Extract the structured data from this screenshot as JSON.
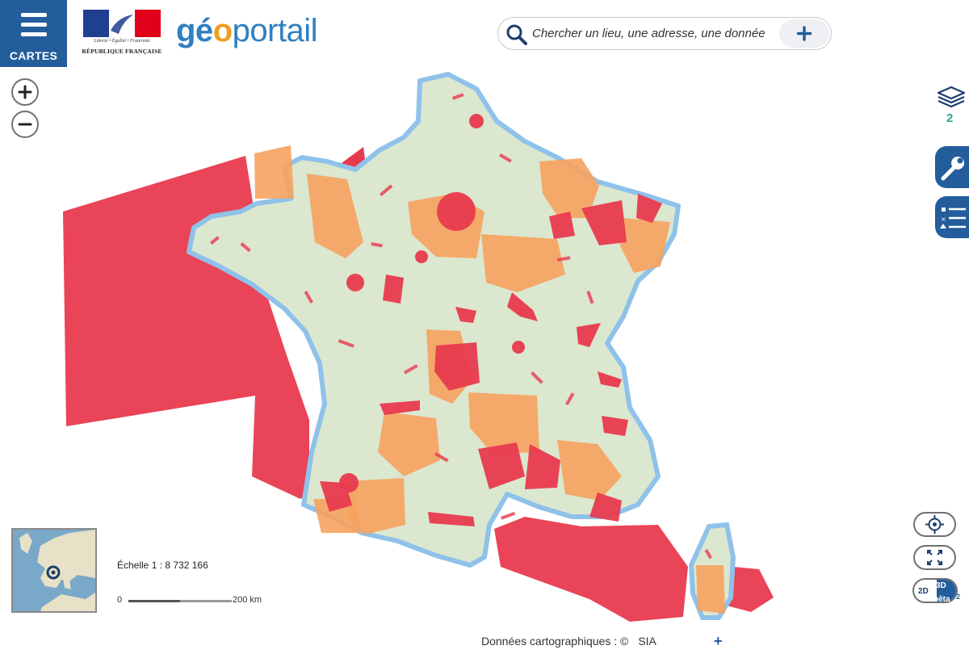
{
  "header": {
    "menu_label": "CARTES",
    "rf_motto": "Liberté • Égalité • Fraternité",
    "rf_name": "RÉPUBLIQUE FRANÇAISE",
    "brand_part1": "gé",
    "brand_part2": "o",
    "brand_part3": "portail",
    "search_placeholder": "Chercher un lieu, une adresse, une donnée",
    "search_add": "+"
  },
  "map": {
    "layers_count": "2",
    "scale_text": "Échelle 1 : 8 732 166",
    "scale_zero": "0",
    "scale_distance": "200 km",
    "view_2d": "2D",
    "view_3d": "3D",
    "view_beta": "bêta",
    "view_beta_sup": "2",
    "colors": {
      "restricted_zone": "#e83a4e",
      "regulated_zone": "#f6a25e",
      "land": "#dbe7cf",
      "sea_edge": "#8fc2ea",
      "brand_blue": "#235d9c"
    }
  },
  "footer": {
    "attribution": "Données cartographiques : ©",
    "attribution_source": "SIA",
    "attribution_more": "+"
  }
}
